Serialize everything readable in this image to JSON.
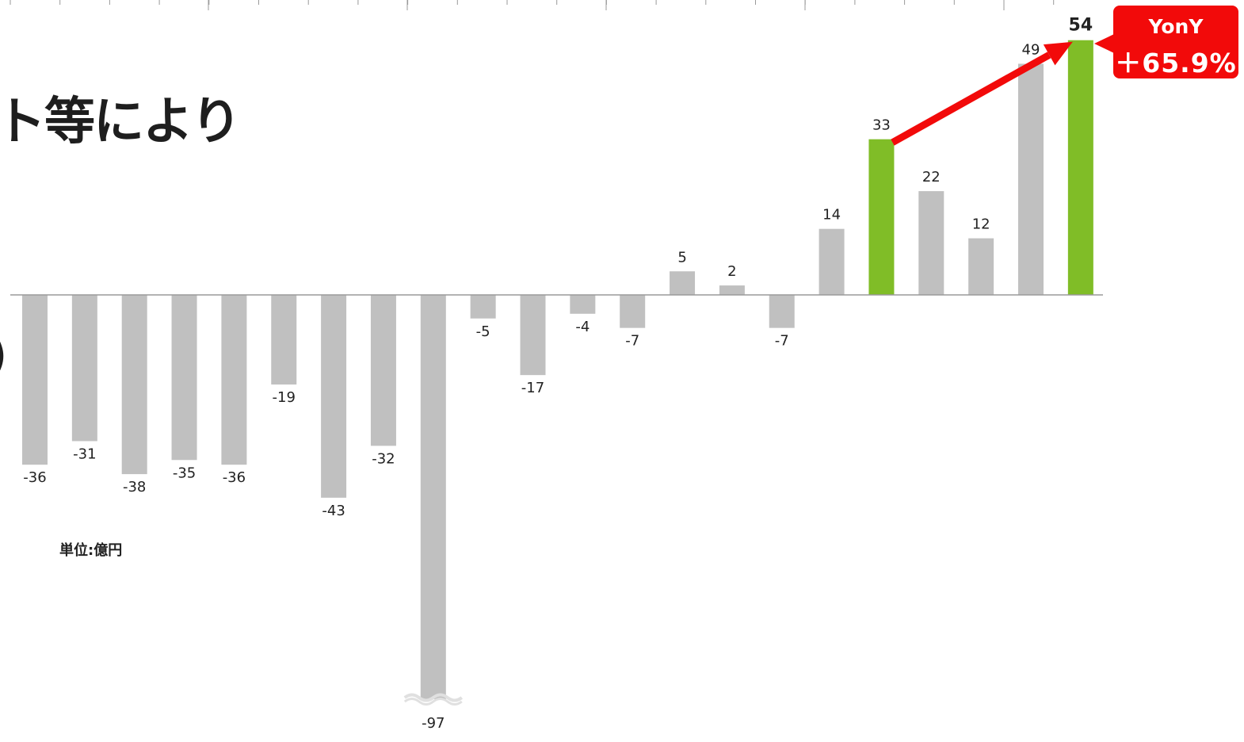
{
  "heading_fragment": "ト等により",
  "paren_fragment": ")",
  "unit_note": "単位:億円",
  "highlight": {
    "label": "YonY",
    "change": "＋65.9%",
    "from_index": 17,
    "to_index": 21
  },
  "colors": {
    "bar_default": "#c0c0c0",
    "bar_highlight": "#80bd27",
    "arrow": "#f20a0a",
    "badge": "#f20a0a",
    "baseline": "#9a9a9a",
    "tick": "#9a9a9a",
    "label": "#222222"
  },
  "chart_data": {
    "type": "bar",
    "title": "",
    "xlabel": "",
    "ylabel": "",
    "categories": [
      "",
      "",
      "",
      "",
      "",
      "",
      "",
      "",
      "",
      "",
      "",
      "",
      "",
      "",
      "",
      "",
      "",
      "",
      "",
      "",
      "",
      ""
    ],
    "values": [
      -36,
      -31,
      -38,
      -35,
      -36,
      -19,
      -43,
      -32,
      -97,
      -5,
      -17,
      -4,
      -7,
      5,
      2,
      -7,
      14,
      33,
      22,
      12,
      49,
      54
    ],
    "highlighted_indices": [
      17,
      21
    ],
    "bold_label_indices": [
      21
    ],
    "broken_bar_indices": [
      8
    ],
    "grid": false,
    "legend": "none"
  }
}
